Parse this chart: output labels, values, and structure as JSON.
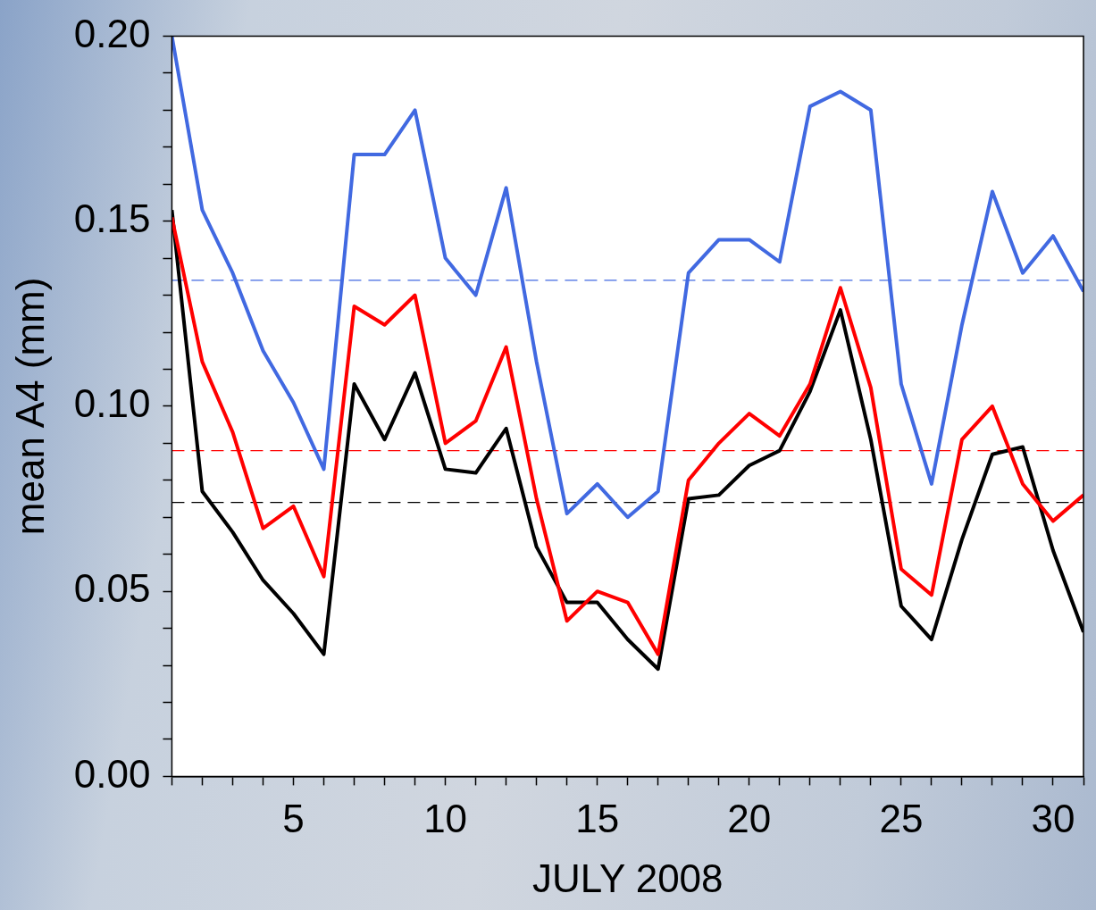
{
  "chart_data": {
    "type": "line",
    "xlabel": "JULY 2008",
    "ylabel": "mean A4 (mm)",
    "x": [
      1,
      2,
      3,
      4,
      5,
      6,
      7,
      8,
      9,
      10,
      11,
      12,
      13,
      14,
      15,
      16,
      17,
      18,
      19,
      20,
      21,
      22,
      23,
      24,
      25,
      26,
      27,
      28,
      29,
      30,
      31
    ],
    "series": [
      {
        "color": "#4169e1",
        "values": [
          0.2,
          0.153,
          0.136,
          0.115,
          0.101,
          0.083,
          0.168,
          0.168,
          0.18,
          0.14,
          0.13,
          0.159,
          0.112,
          0.071,
          0.079,
          0.07,
          0.077,
          0.136,
          0.145,
          0.145,
          0.139,
          0.181,
          0.185,
          0.18,
          0.106,
          0.079,
          0.122,
          0.158,
          0.136,
          0.146,
          0.131
        ]
      },
      {
        "color": "#ff0000",
        "values": [
          0.151,
          0.112,
          0.093,
          0.067,
          0.073,
          0.054,
          0.127,
          0.122,
          0.13,
          0.09,
          0.096,
          0.116,
          0.075,
          0.042,
          0.05,
          0.047,
          0.033,
          0.08,
          0.09,
          0.098,
          0.092,
          0.106,
          0.132,
          0.105,
          0.056,
          0.049,
          0.091,
          0.1,
          0.079,
          0.069,
          0.076
        ]
      },
      {
        "color": "#000000",
        "values": [
          0.153,
          0.077,
          0.066,
          0.053,
          0.044,
          0.033,
          0.106,
          0.091,
          0.109,
          0.083,
          0.082,
          0.094,
          0.062,
          0.047,
          0.047,
          0.037,
          0.029,
          0.075,
          0.076,
          0.084,
          0.088,
          0.104,
          0.126,
          0.091,
          0.046,
          0.037,
          0.064,
          0.087,
          0.089,
          0.061,
          0.039
        ]
      }
    ],
    "ref_lines": [
      {
        "axis": "y",
        "value": 0.134,
        "color": "#4169e1",
        "line_style": "dashed"
      },
      {
        "axis": "y",
        "value": 0.088,
        "color": "#ff0000",
        "line_style": "dashed"
      },
      {
        "axis": "y",
        "value": 0.074,
        "color": "#000000",
        "line_style": "dashed"
      }
    ],
    "xlim": [
      1,
      31
    ],
    "xticks": [
      {
        "value": 1,
        "label": null
      },
      {
        "value": 2,
        "label": null
      },
      {
        "value": 3,
        "label": null
      },
      {
        "value": 4,
        "label": null
      },
      5,
      {
        "value": 6,
        "label": null
      },
      {
        "value": 7,
        "label": null
      },
      {
        "value": 8,
        "label": null
      },
      {
        "value": 9,
        "label": null
      },
      10,
      {
        "value": 11,
        "label": null
      },
      {
        "value": 12,
        "label": null
      },
      {
        "value": 13,
        "label": null
      },
      {
        "value": 14,
        "label": null
      },
      15,
      {
        "value": 16,
        "label": null
      },
      {
        "value": 17,
        "label": null
      },
      {
        "value": 18,
        "label": null
      },
      {
        "value": 19,
        "label": null
      },
      20,
      {
        "value": 21,
        "label": null
      },
      {
        "value": 22,
        "label": null
      },
      {
        "value": 23,
        "label": null
      },
      {
        "value": 24,
        "label": null
      },
      25,
      {
        "value": 26,
        "label": null
      },
      {
        "value": 27,
        "label": null
      },
      {
        "value": 28,
        "label": null
      },
      {
        "value": 29,
        "label": null
      },
      30,
      {
        "value": 31,
        "label": null
      }
    ],
    "ylim": [
      0,
      0.2
    ],
    "yticks": [
      {
        "value": 0,
        "label": "0.00"
      },
      {
        "value": 0.01,
        "label": null
      },
      {
        "value": 0.02,
        "label": null
      },
      {
        "value": 0.03,
        "label": null
      },
      {
        "value": 0.04,
        "label": null
      },
      {
        "value": 0.05,
        "label": "0.05"
      },
      {
        "value": 0.06,
        "label": null
      },
      {
        "value": 0.07,
        "label": null
      },
      {
        "value": 0.08,
        "label": null
      },
      {
        "value": 0.09,
        "label": null
      },
      {
        "value": 0.1,
        "label": "0.10"
      },
      {
        "value": 0.11,
        "label": null
      },
      {
        "value": 0.12,
        "label": null
      },
      {
        "value": 0.13,
        "label": null
      },
      {
        "value": 0.14,
        "label": null
      },
      {
        "value": 0.15,
        "label": "0.15"
      },
      {
        "value": 0.16,
        "label": null
      },
      {
        "value": 0.17,
        "label": null
      },
      {
        "value": 0.18,
        "label": null
      },
      {
        "value": 0.19,
        "label": null
      },
      {
        "value": 0.2,
        "label": "0.20"
      }
    ],
    "grid": false,
    "legend": false,
    "marker": "none",
    "line_style": "solid"
  }
}
